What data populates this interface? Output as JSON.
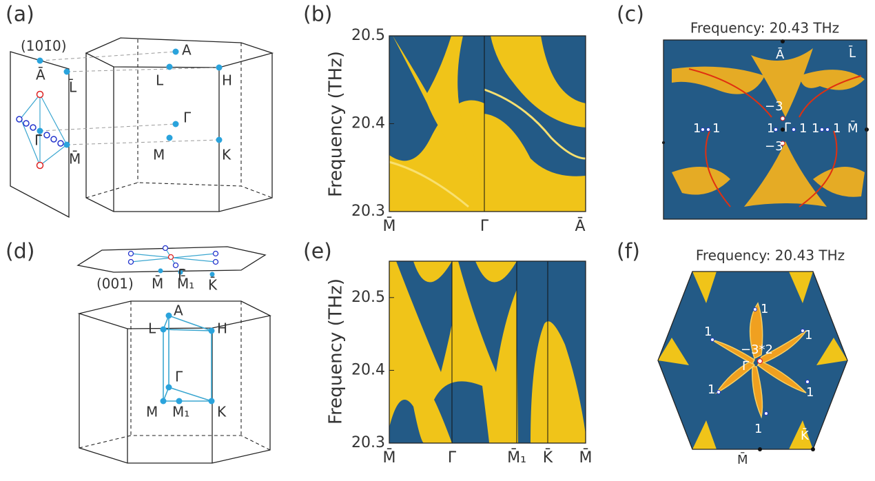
{
  "panel_a": {
    "label": "(a)",
    "surface": "(101̄0)",
    "points": [
      "A",
      "L",
      "H",
      "Γ",
      "M",
      "K"
    ],
    "projected": [
      "Ā",
      "L̄",
      "Γ̄",
      "M̄"
    ]
  },
  "panel_b": {
    "label": "(b)",
    "ylabel": "Frequency (THz)",
    "ylim": [
      20.3,
      20.5
    ],
    "yticks": [
      20.3,
      20.4,
      20.5
    ],
    "categories": [
      "M̄",
      "Γ̄",
      "Ā"
    ]
  },
  "panel_c": {
    "label": "(c)",
    "title": "Frequency: 20.43 THz",
    "points": [
      "Ā",
      "L̄",
      "Γ̄",
      "M̄"
    ],
    "charges": [
      "1",
      "1",
      "1",
      "1",
      "1",
      "1",
      "−3",
      "−3"
    ]
  },
  "panel_d": {
    "label": "(d)",
    "surface": "(001)",
    "projected": [
      "M̄",
      "M̄₁",
      "K̄",
      "Γ̄"
    ],
    "points": [
      "A",
      "L",
      "H",
      "Γ",
      "M",
      "M₁",
      "K"
    ]
  },
  "panel_e": {
    "label": "(e)",
    "ylabel": "Frequency (THz)",
    "ylim": [
      20.3,
      20.55
    ],
    "yticks": [
      20.3,
      20.4,
      20.5
    ],
    "categories": [
      "M̄",
      "Γ̄",
      "M̄₁",
      "K̄",
      "M̄"
    ]
  },
  "panel_f": {
    "label": "(f)",
    "title": "Frequency: 20.43 THz",
    "charges": [
      "1",
      "1",
      "1",
      "1",
      "1",
      "1",
      "−3*2"
    ],
    "points": [
      "Γ̄",
      "M̄",
      "K̄"
    ]
  }
}
